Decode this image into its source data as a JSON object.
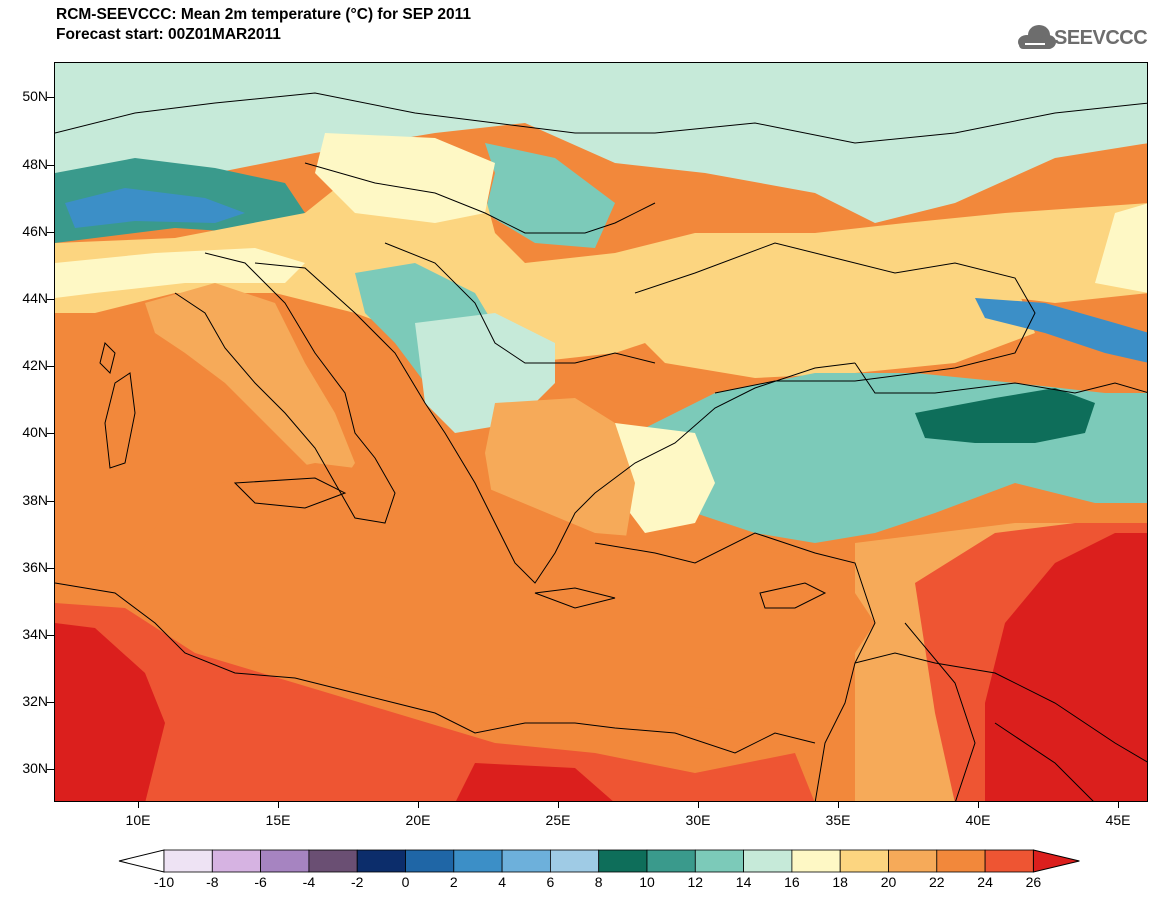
{
  "title_line1": "RCM-SEEVCCC: Mean 2m temperature (°C) for SEP 2011",
  "title_line2": "Forecast start: 00Z01MAR2011",
  "logo": {
    "text": "SEEVCCC",
    "icon": "cloud-logo-icon",
    "color": "#6d6d6d"
  },
  "map": {
    "type": "filled-contour-map",
    "variable": "Mean 2m temperature",
    "units": "°C",
    "lat_range": [
      29,
      51
    ],
    "lon_range": [
      6.8,
      46.2
    ],
    "lat_ticks": [
      "30N",
      "32N",
      "34N",
      "36N",
      "38N",
      "40N",
      "42N",
      "44N",
      "46N",
      "48N",
      "50N"
    ],
    "lon_ticks": [
      "10E",
      "15E",
      "20E",
      "25E",
      "30E",
      "35E",
      "40E",
      "45E"
    ],
    "borders": "black country and coastline outlines"
  },
  "colorbar": {
    "labels": [
      "-10",
      "-8",
      "-6",
      "-4",
      "-2",
      "0",
      "2",
      "4",
      "6",
      "8",
      "10",
      "12",
      "14",
      "16",
      "18",
      "20",
      "22",
      "24",
      "26"
    ],
    "colors": [
      "#ffffff",
      "#eee3f4",
      "#d6b3e2",
      "#a684c1",
      "#6a4f73",
      "#0c2d6b",
      "#1f66a6",
      "#3c8fc7",
      "#6db0db",
      "#9fcbe5",
      "#0e6e5a",
      "#3a9a8c",
      "#7ccab9",
      "#c6ead9",
      "#fef8c5",
      "#fcd580",
      "#f6aa59",
      "#f2883b",
      "#ee5533",
      "#db1f1d"
    ]
  }
}
